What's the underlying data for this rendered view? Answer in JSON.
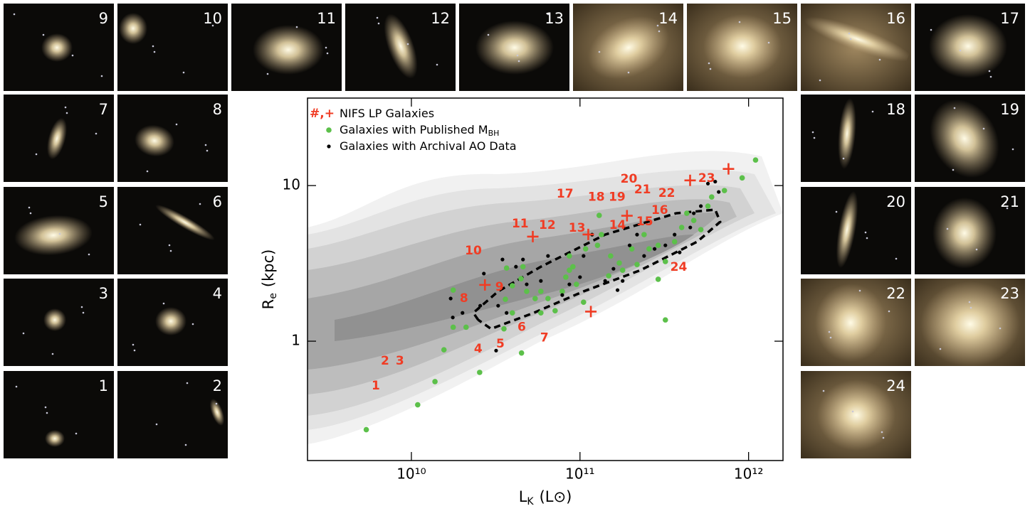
{
  "chart_data": {
    "type": "scatter",
    "xlabel": {
      "main": "L",
      "sub": "K",
      "rest": "(L⊙)"
    },
    "ylabel": {
      "main": "R",
      "sub": "e",
      "rest": "(kpc)"
    },
    "xscale": "log",
    "yscale": "log",
    "xlim": [
      2420000000.0,
      1600000000000.0
    ],
    "ylim": [
      0.171,
      36.5
    ],
    "xticks": [
      {
        "value": 10000000000.0,
        "label": "10¹⁰"
      },
      {
        "value": 100000000000.0,
        "label": "10¹¹"
      },
      {
        "value": 1000000000000.0,
        "label": "10¹²"
      }
    ],
    "yticks": [
      1,
      10
    ],
    "legend": "upper left",
    "series": [
      {
        "name": "NIFS LP Galaxies",
        "marker_label": "#,+",
        "color": "#f03c24",
        "marker": "text",
        "labels": [
          "1",
          "2",
          "3",
          "4",
          "5",
          "6",
          "7",
          "8",
          "9",
          "10",
          "11",
          "12",
          "13",
          "14",
          "15",
          "16",
          "17",
          "18",
          "19",
          "20",
          "21",
          "22",
          "23",
          "24"
        ],
        "x": [
          6150000000.0,
          6980000000.0,
          8550000000.0,
          24900000000.0,
          33700000000.0,
          45100000000.0,
          61500000000.0,
          20500000000.0,
          33300000000.0,
          23300000000.0,
          44200000000.0,
          64000000000.0,
          96000000000.0,
          167000000000.0,
          242000000000.0,
          297000000000.0,
          81500000000.0,
          125000000000.0,
          166000000000.0,
          195000000000.0,
          235000000000.0,
          327000000000.0,
          564000000000.0,
          385000000000.0
        ],
        "values": [
          0.515,
          0.745,
          0.745,
          0.89,
          0.96,
          1.23,
          1.05,
          1.88,
          2.22,
          3.8,
          5.66,
          5.55,
          5.32,
          5.55,
          5.85,
          6.92,
          8.81,
          8.4,
          8.4,
          11.0,
          9.39,
          8.9,
          11.1,
          2.98
        ]
      },
      {
        "color": "#f03c24",
        "marker": "plus",
        "x": [
          27300000000.0,
          52500000000.0,
          112000000000.0,
          190000000000.0,
          116000000000.0,
          450000000000.0,
          760000000000.0
        ],
        "values": [
          2.3,
          4.7,
          4.85,
          6.4,
          1.55,
          10.8,
          12.8
        ]
      },
      {
        "name": "Galaxies with Published M",
        "name_subscript": "BH",
        "color": "#5cc04a",
        "marker": "dot",
        "x": [
          5400000000.0,
          10900000000.0,
          13800000000.0,
          25400000000.0,
          45000000000.0,
          15600000000.0,
          17700000000.0,
          17700000000.0,
          21100000000.0,
          35400000000.0,
          36100000000.0,
          39700000000.0,
          36700000000.0,
          44700000000.0,
          45900000000.0,
          48300000000.0,
          54200000000.0,
          58600000000.0,
          64600000000.0,
          71200000000.0,
          78500000000.0,
          82400000000.0,
          86500000000.0,
          90800000000.0,
          86500000000.0,
          95300000000.0,
          105000000000.0,
          108000000000.0,
          127000000000.0,
          134000000000.0,
          152000000000.0,
          171000000000.0,
          179000000000.0,
          203000000000.0,
          218000000000.0,
          240000000000.0,
          257000000000.0,
          291000000000.0,
          321000000000.0,
          364000000000.0,
          401000000000.0,
          430000000000.0,
          473000000000.0,
          521000000000.0,
          574000000000.0,
          604000000000.0,
          719000000000.0,
          916000000000.0,
          1100000000000.0,
          291000000000.0,
          321000000000.0,
          130000000000.0,
          148000000000.0,
          39700000000.0,
          58600000000.0
        ],
        "values": [
          0.27,
          0.39,
          0.55,
          0.63,
          0.84,
          0.88,
          2.13,
          1.23,
          1.23,
          1.2,
          1.86,
          2.27,
          2.95,
          2.52,
          3.01,
          2.09,
          1.88,
          2.09,
          1.88,
          1.57,
          2.09,
          2.58,
          2.86,
          3.01,
          3.53,
          2.32,
          1.78,
          3.92,
          4.13,
          4.84,
          3.53,
          3.18,
          2.86,
          3.92,
          3.11,
          4.84,
          3.92,
          4.13,
          3.25,
          4.36,
          5.38,
          6.64,
          5.97,
          5.21,
          7.38,
          8.45,
          9.29,
          11.2,
          14.6,
          2.5,
          1.37,
          6.43,
          2.63,
          1.52,
          1.52
        ]
      },
      {
        "name": "Galaxies with Archival AO Data",
        "color": "#000000",
        "marker": "dot",
        "x": [
          17100000000.0,
          17600000000.0,
          20100000000.0,
          25600000000.0,
          32700000000.0,
          36700000000.0,
          45900000000.0,
          48300000000.0,
          58600000000.0,
          64600000000.0,
          78500000000.0,
          86500000000.0,
          100000000000.0,
          105000000000.0,
          118000000000.0,
          141000000000.0,
          158000000000.0,
          167000000000.0,
          179000000000.0,
          197000000000.0,
          218000000000.0,
          240000000000.0,
          277000000000.0,
          321000000000.0,
          364000000000.0,
          390000000000.0,
          451000000000.0,
          473000000000.0,
          521000000000.0,
          574000000000.0,
          634000000000.0,
          665000000000.0,
          26900000000.0,
          34700000000.0,
          41700000000.0,
          31800000000.0
        ],
        "values": [
          1.88,
          1.42,
          1.52,
          1.69,
          1.69,
          1.52,
          3.35,
          2.32,
          2.44,
          3.53,
          1.98,
          2.32,
          2.58,
          3.53,
          4.84,
          2.44,
          2.92,
          2.13,
          2.44,
          4.13,
          4.84,
          3.53,
          3.92,
          4.13,
          4.84,
          3.72,
          5.38,
          6.64,
          7.38,
          10.3,
          10.6,
          9.1,
          2.72,
          3.35,
          3.01,
          0.87
        ]
      }
    ],
    "contour": {
      "style": "dashed",
      "color": "#000000",
      "x": [
        24900000000.0,
        23300000000.0,
        32700000000.0,
        58600000000.0,
        141000000000.0,
        372000000000.0,
        634000000000.0,
        678000000000.0,
        497000000000.0,
        229000000000.0,
        105000000000.0,
        53200000000.0,
        29700000000.0,
        24900000000.0
      ],
      "values": [
        1.37,
        1.52,
        2.09,
        3.01,
        4.84,
        6.64,
        7.0,
        5.85,
        4.36,
        2.86,
        2.09,
        1.52,
        1.2,
        1.37
      ]
    }
  },
  "thumbnails": [
    "9",
    "10",
    "7",
    "8",
    "5",
    "6",
    "3",
    "4",
    "1",
    "2",
    "11",
    "12",
    "13",
    "14",
    "15",
    "16",
    "17",
    "18",
    "19",
    "20",
    "21",
    "22",
    "23",
    "24"
  ]
}
